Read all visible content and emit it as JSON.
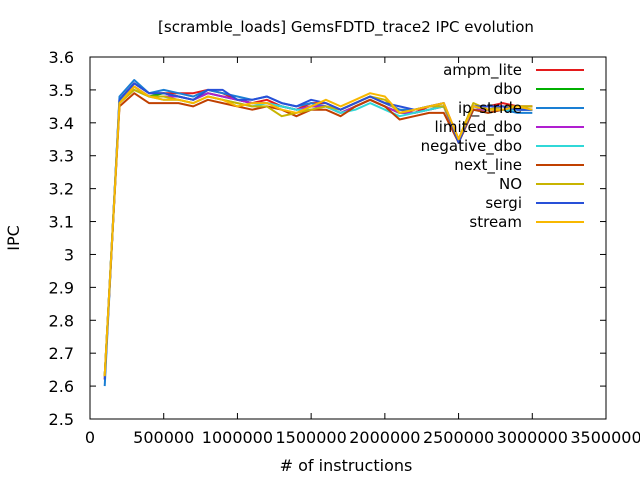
{
  "chart_data": {
    "type": "line",
    "title": "[scramble_loads] GemsFDTD_trace2 IPC evolution",
    "xlabel": "# of instructions",
    "ylabel": "IPC",
    "xlim": [
      0,
      3500000
    ],
    "ylim": [
      2.5,
      3.6
    ],
    "x_ticks": [
      "0",
      "500000",
      "1000000",
      "1500000",
      "2000000",
      "2500000",
      "3000000",
      "3500000"
    ],
    "y_ticks": [
      "2.5",
      "2.6",
      "2.7",
      "2.8",
      "2.9",
      "3",
      "3.1",
      "3.2",
      "3.3",
      "3.4",
      "3.5",
      "3.6"
    ],
    "grid": false,
    "legend_position": "top-right",
    "x": [
      100000,
      200000,
      300000,
      400000,
      500000,
      600000,
      700000,
      800000,
      900000,
      1000000,
      1100000,
      1200000,
      1300000,
      1400000,
      1500000,
      1600000,
      1700000,
      1800000,
      1900000,
      2000000,
      2100000,
      2200000,
      2300000,
      2400000,
      2500000,
      2600000,
      2700000,
      2800000,
      2900000,
      3000000
    ],
    "series": [
      {
        "name": "ampm_lite",
        "color": "#e41a1c",
        "values": [
          2.62,
          3.47,
          3.52,
          3.49,
          3.49,
          3.49,
          3.49,
          3.5,
          3.49,
          3.47,
          3.46,
          3.47,
          3.45,
          3.44,
          3.46,
          3.46,
          3.44,
          3.46,
          3.48,
          3.46,
          3.44,
          3.43,
          3.45,
          3.46,
          3.35,
          3.45,
          3.45,
          3.46,
          3.45,
          3.45
        ]
      },
      {
        "name": "dbo",
        "color": "#00b000",
        "values": [
          2.63,
          3.46,
          3.51,
          3.48,
          3.49,
          3.48,
          3.47,
          3.49,
          3.48,
          3.47,
          3.46,
          3.46,
          3.45,
          3.44,
          3.45,
          3.45,
          3.43,
          3.45,
          3.47,
          3.45,
          3.43,
          3.43,
          3.44,
          3.45,
          3.34,
          3.44,
          3.44,
          3.45,
          3.44,
          3.44
        ]
      },
      {
        "name": "ip_stride",
        "color": "#1a7fd4",
        "values": [
          2.6,
          3.48,
          3.53,
          3.49,
          3.5,
          3.49,
          3.48,
          3.5,
          3.49,
          3.48,
          3.47,
          3.48,
          3.46,
          3.45,
          3.46,
          3.45,
          3.44,
          3.46,
          3.48,
          3.46,
          3.44,
          3.44,
          3.45,
          3.45,
          3.34,
          3.45,
          3.44,
          3.44,
          3.43,
          3.43
        ]
      },
      {
        "name": "limited_dbo",
        "color": "#b01ed0",
        "values": [
          2.63,
          3.46,
          3.51,
          3.48,
          3.48,
          3.48,
          3.47,
          3.49,
          3.48,
          3.47,
          3.46,
          3.46,
          3.45,
          3.44,
          3.45,
          3.45,
          3.43,
          3.45,
          3.47,
          3.45,
          3.43,
          3.43,
          3.44,
          3.45,
          3.34,
          3.44,
          3.44,
          3.45,
          3.44,
          3.44
        ]
      },
      {
        "name": "negative_dbo",
        "color": "#30d8d8",
        "values": [
          2.63,
          3.47,
          3.5,
          3.48,
          3.47,
          3.47,
          3.46,
          3.48,
          3.47,
          3.46,
          3.45,
          3.46,
          3.45,
          3.44,
          3.44,
          3.45,
          3.43,
          3.44,
          3.46,
          3.44,
          3.42,
          3.43,
          3.44,
          3.45,
          3.35,
          3.44,
          3.43,
          3.44,
          3.44,
          3.44
        ]
      },
      {
        "name": "next_line",
        "color": "#c04000",
        "values": [
          2.63,
          3.45,
          3.49,
          3.46,
          3.46,
          3.46,
          3.45,
          3.47,
          3.46,
          3.45,
          3.44,
          3.45,
          3.44,
          3.42,
          3.44,
          3.44,
          3.42,
          3.45,
          3.47,
          3.45,
          3.41,
          3.42,
          3.43,
          3.43,
          3.34,
          3.44,
          3.43,
          3.44,
          3.45,
          3.45
        ]
      },
      {
        "name": "NO",
        "color": "#c8b400",
        "values": [
          2.63,
          3.46,
          3.5,
          3.48,
          3.48,
          3.47,
          3.46,
          3.48,
          3.47,
          3.46,
          3.45,
          3.45,
          3.42,
          3.43,
          3.44,
          3.45,
          3.44,
          3.46,
          3.48,
          3.47,
          3.43,
          3.44,
          3.45,
          3.45,
          3.35,
          3.46,
          3.44,
          3.45,
          3.45,
          3.45
        ]
      },
      {
        "name": "sergi",
        "color": "#2850d8",
        "values": [
          2.62,
          3.47,
          3.52,
          3.49,
          3.49,
          3.48,
          3.47,
          3.5,
          3.5,
          3.47,
          3.47,
          3.48,
          3.46,
          3.45,
          3.47,
          3.46,
          3.44,
          3.46,
          3.48,
          3.46,
          3.45,
          3.44,
          3.45,
          3.46,
          3.34,
          3.45,
          3.45,
          3.45,
          3.44,
          3.44
        ]
      },
      {
        "name": "stream",
        "color": "#f8b800",
        "values": [
          2.63,
          3.46,
          3.51,
          3.48,
          3.47,
          3.47,
          3.46,
          3.48,
          3.47,
          3.45,
          3.46,
          3.46,
          3.44,
          3.43,
          3.45,
          3.47,
          3.45,
          3.47,
          3.49,
          3.48,
          3.43,
          3.44,
          3.45,
          3.46,
          3.35,
          3.45,
          3.44,
          3.44,
          3.45,
          3.44
        ]
      }
    ]
  }
}
